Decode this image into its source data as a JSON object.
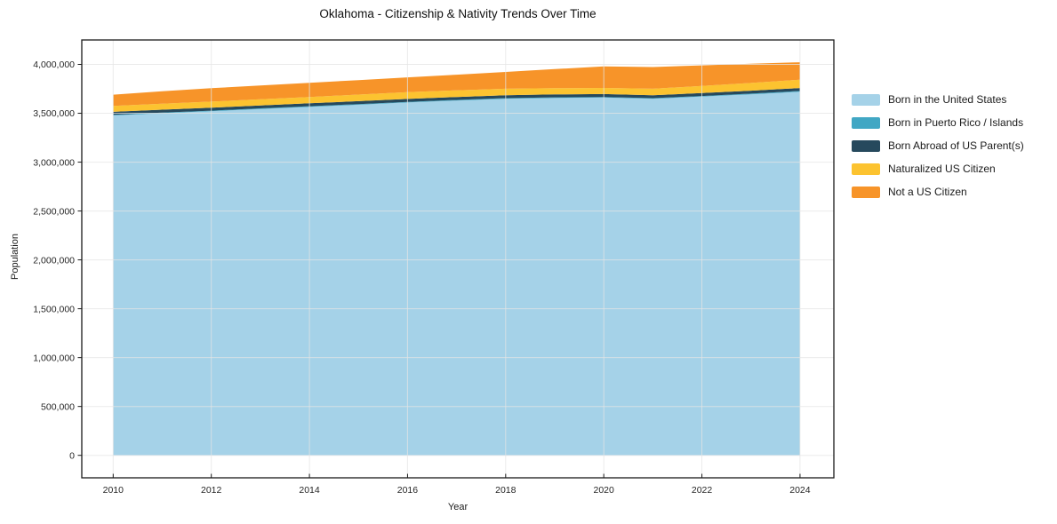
{
  "figure": {
    "title": "Oklahoma - Citizenship & Nativity Trends Over Time",
    "xlabel": "Year",
    "ylabel": "Population"
  },
  "chart_data": {
    "type": "area",
    "stacked": true,
    "title": "Oklahoma - Citizenship & Nativity Trends Over Time",
    "xlabel": "Year",
    "ylabel": "Population",
    "grid": true,
    "legend_position": "right-outside",
    "x": [
      2010,
      2011,
      2012,
      2013,
      2014,
      2015,
      2016,
      2017,
      2018,
      2019,
      2020,
      2021,
      2022,
      2023,
      2024
    ],
    "series": [
      {
        "name": "Born in the United States",
        "color": "#A5D2E8",
        "values": [
          3478000,
          3500000,
          3520000,
          3543000,
          3565000,
          3587000,
          3610000,
          3630000,
          3648000,
          3656000,
          3660000,
          3648000,
          3670000,
          3693000,
          3720000
        ]
      },
      {
        "name": "Born in Puerto Rico / Islands",
        "color": "#41A7C4",
        "values": [
          7000,
          7000,
          7000,
          7000,
          7000,
          7000,
          7000,
          7000,
          7000,
          7000,
          7000,
          7000,
          7000,
          8000,
          8000
        ]
      },
      {
        "name": "Born Abroad of US Parent(s)",
        "color": "#26495D",
        "values": [
          30000,
          30000,
          30000,
          30000,
          30000,
          30000,
          30000,
          30000,
          30000,
          30000,
          30000,
          30000,
          30000,
          30000,
          30000
        ]
      },
      {
        "name": "Naturalized US Citizen",
        "color": "#FCC330",
        "values": [
          60000,
          61000,
          62000,
          63000,
          65000,
          67000,
          70000,
          68000,
          66000,
          64000,
          62000,
          66000,
          72000,
          79000,
          86000
        ]
      },
      {
        "name": "Not a US Citizen",
        "color": "#F79429",
        "values": [
          115000,
          127000,
          138000,
          142000,
          145000,
          148000,
          150000,
          160000,
          172000,
          195000,
          220000,
          222000,
          211000,
          197000,
          178000
        ]
      }
    ],
    "xlim": [
      2009.36,
      2024.69
    ],
    "ylim": [
      -230000,
      4250000
    ],
    "xticks": [
      {
        "value": 2010,
        "label": "2010"
      },
      {
        "value": 2012,
        "label": "2012"
      },
      {
        "value": 2014,
        "label": "2014"
      },
      {
        "value": 2016,
        "label": "2016"
      },
      {
        "value": 2018,
        "label": "2018"
      },
      {
        "value": 2020,
        "label": "2020"
      },
      {
        "value": 2022,
        "label": "2022"
      },
      {
        "value": 2024,
        "label": "2024"
      }
    ],
    "yticks": [
      {
        "value": 0,
        "label": "0"
      },
      {
        "value": 500000,
        "label": "500,000"
      },
      {
        "value": 1000000,
        "label": "1,000,000"
      },
      {
        "value": 1500000,
        "label": "1,500,000"
      },
      {
        "value": 2000000,
        "label": "2,000,000"
      },
      {
        "value": 2500000,
        "label": "2,500,000"
      },
      {
        "value": 3000000,
        "label": "3,000,000"
      },
      {
        "value": 3500000,
        "label": "3,500,000"
      },
      {
        "value": 4000000,
        "label": "4,000,000"
      }
    ]
  },
  "colors": {
    "background": "#FFFFFF",
    "axis": "#1A1A1A",
    "grid": "#E4E4E4",
    "tick_label": "#262626"
  }
}
